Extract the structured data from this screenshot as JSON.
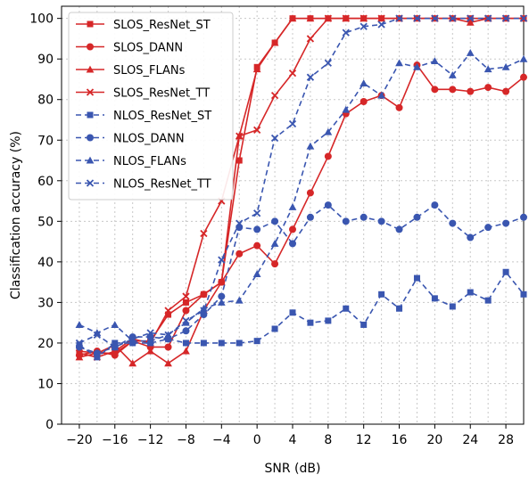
{
  "chart_data": {
    "type": "line",
    "xlabel": "SNR (dB)",
    "ylabel": "Classification accuracy (%)",
    "xlim": [
      -22,
      30
    ],
    "ylim": [
      0,
      103
    ],
    "xticks": [
      -20,
      -16,
      -12,
      -8,
      -4,
      0,
      4,
      8,
      12,
      16,
      20,
      24,
      28
    ],
    "xtick_labels": [
      "−20",
      "−16",
      "−12",
      "−8",
      "−4",
      "0",
      "4",
      "8",
      "12",
      "16",
      "20",
      "24",
      "28"
    ],
    "yticks": [
      0,
      10,
      20,
      30,
      40,
      50,
      60,
      70,
      80,
      90,
      100
    ],
    "ytick_labels": [
      "0",
      "10",
      "20",
      "30",
      "40",
      "50",
      "60",
      "70",
      "80",
      "90",
      "100"
    ],
    "grid": true,
    "legend_position": "top-left",
    "x": [
      -20,
      -18,
      -16,
      -14,
      -12,
      -10,
      -8,
      -6,
      -4,
      -2,
      0,
      2,
      4,
      6,
      8,
      10,
      12,
      14,
      16,
      18,
      20,
      22,
      24,
      26,
      28,
      30
    ],
    "series": [
      {
        "name": "SLOS_ResNet_ST",
        "color": "#d62728",
        "marker": "square",
        "dash": "solid",
        "values": [
          18,
          17.5,
          17.5,
          20.5,
          20.5,
          27,
          30,
          32,
          35,
          65,
          88,
          94,
          100,
          100,
          100,
          100,
          100,
          100,
          100,
          100,
          100,
          100,
          100,
          100,
          100,
          100
        ]
      },
      {
        "name": "SLOS_DANN",
        "color": "#d62728",
        "marker": "circle",
        "dash": "solid",
        "values": [
          17,
          18,
          17,
          20.5,
          19,
          19,
          28,
          32,
          35,
          42,
          44,
          39.5,
          48,
          57,
          66,
          76.5,
          79.5,
          81,
          78,
          88.5,
          82.5,
          82.5,
          82,
          83,
          82,
          85.5
        ]
      },
      {
        "name": "SLOS_FLANs",
        "color": "#d62728",
        "marker": "triangle",
        "dash": "solid",
        "values": [
          16.5,
          17.5,
          19.5,
          15,
          18,
          15,
          18,
          28,
          35,
          71,
          87.5,
          94,
          100,
          100,
          100,
          100,
          100,
          100,
          100,
          100,
          100,
          100,
          99,
          100,
          100,
          100
        ]
      },
      {
        "name": "SLOS_ResNet_TT",
        "color": "#d62728",
        "marker": "x",
        "dash": "solid",
        "values": [
          17.5,
          16.5,
          18,
          21,
          20,
          28,
          31.5,
          47,
          55,
          71,
          72.5,
          81,
          86.5,
          95,
          100,
          100,
          100,
          100,
          100,
          100,
          100,
          100,
          100,
          100,
          100,
          100
        ]
      },
      {
        "name": "NLOS_ResNet_ST",
        "color": "#3a56b0",
        "marker": "square",
        "dash": "dashed",
        "values": [
          19.5,
          16.5,
          20,
          20,
          20,
          21,
          20,
          20,
          20,
          20,
          20.5,
          23.5,
          27.5,
          25,
          25.5,
          28.5,
          24.5,
          32,
          28.5,
          36,
          31,
          29,
          32.5,
          30.5,
          37.5,
          32
        ]
      },
      {
        "name": "NLOS_DANN",
        "color": "#3a56b0",
        "marker": "circle",
        "dash": "dashed",
        "values": [
          19,
          17.5,
          19,
          21.5,
          21.5,
          21,
          23,
          27,
          31.5,
          48.5,
          48,
          50,
          44.5,
          51,
          54,
          50,
          51,
          50,
          48,
          51,
          54,
          49.5,
          46,
          48.5,
          49.5,
          51
        ]
      },
      {
        "name": "NLOS_FLANs",
        "color": "#3a56b0",
        "marker": "triangle",
        "dash": "dashed",
        "values": [
          24.5,
          22.5,
          24.5,
          20.5,
          20.5,
          22,
          25,
          28.5,
          30,
          30.5,
          37,
          44.5,
          53.5,
          68.5,
          72,
          77.5,
          84,
          81,
          89,
          88,
          89.5,
          86,
          91.5,
          87.5,
          88,
          90
        ]
      },
      {
        "name": "NLOS_ResNet_TT",
        "color": "#3a56b0",
        "marker": "x",
        "dash": "dashed",
        "values": [
          20,
          22,
          19,
          21,
          22.5,
          22,
          25.5,
          28,
          40.5,
          49.5,
          52,
          70.5,
          74,
          85.5,
          89,
          96.5,
          98,
          98.5,
          100,
          100,
          100,
          100,
          100,
          100,
          100,
          100
        ]
      }
    ]
  }
}
